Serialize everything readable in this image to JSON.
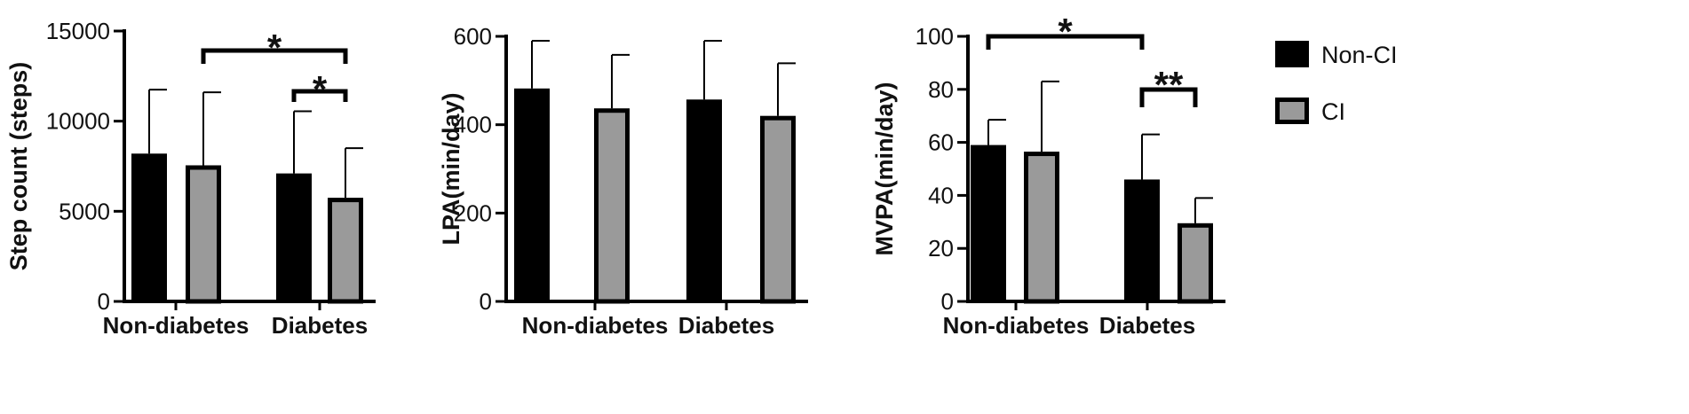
{
  "colors": {
    "non_ci_fill": "#000000",
    "ci_fill": "#9a9a9a",
    "ci_stroke": "#000000",
    "axis": "#000000"
  },
  "legend": {
    "items": [
      {
        "label": "Non-CI",
        "color": "#000000"
      },
      {
        "label": "CI",
        "color": "#9a9a9a"
      }
    ]
  },
  "chart_data": [
    {
      "type": "bar",
      "title": "",
      "ylabel": "Step count (steps)",
      "xlabel": "",
      "categories": [
        "Non-diabetes",
        "Diabetes"
      ],
      "ylim": [
        0,
        15000
      ],
      "yticks": [
        0,
        5000,
        10000,
        15000
      ],
      "series": [
        {
          "name": "Non-CI",
          "values": [
            8200,
            7100
          ],
          "errors": [
            3550,
            3450
          ]
        },
        {
          "name": "CI",
          "values": [
            7550,
            5750
          ],
          "errors": [
            4050,
            2750
          ]
        }
      ],
      "annotations": [
        {
          "text": "*",
          "from": [
            0,
            1
          ],
          "to": [
            1,
            1
          ]
        },
        {
          "text": "*",
          "from": [
            1,
            0
          ],
          "to": [
            1,
            1
          ]
        }
      ]
    },
    {
      "type": "bar",
      "title": "",
      "ylabel": "LPA(min/day)",
      "xlabel": "",
      "categories": [
        "Non-diabetes",
        "Diabetes"
      ],
      "ylim": [
        0,
        600
      ],
      "yticks": [
        0,
        200,
        400,
        600
      ],
      "series": [
        {
          "name": "Non-CI",
          "values": [
            482,
            457
          ],
          "errors": [
            108,
            133
          ]
        },
        {
          "name": "CI",
          "values": [
            437,
            420
          ],
          "errors": [
            121,
            119
          ]
        }
      ],
      "annotations": []
    },
    {
      "type": "bar",
      "title": "",
      "ylabel": "MVPA(min/day)",
      "xlabel": "",
      "categories": [
        "Non-diabetes",
        "Diabetes"
      ],
      "ylim": [
        0,
        100
      ],
      "yticks": [
        0,
        20,
        40,
        60,
        80,
        100
      ],
      "series": [
        {
          "name": "Non-CI",
          "values": [
            59,
            46
          ],
          "errors": [
            9.5,
            17
          ]
        },
        {
          "name": "CI",
          "values": [
            56.5,
            29.5
          ],
          "errors": [
            26.5,
            9.5
          ]
        }
      ],
      "annotations": [
        {
          "text": "*",
          "from": [
            0,
            0
          ],
          "to": [
            1,
            0
          ]
        },
        {
          "text": "**",
          "from": [
            1,
            0
          ],
          "to": [
            1,
            1
          ]
        }
      ]
    }
  ]
}
